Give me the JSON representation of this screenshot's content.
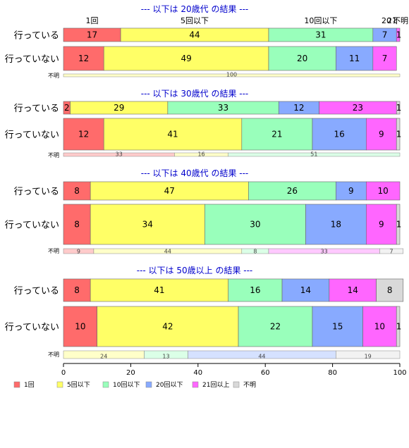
{
  "chart_data": {
    "type": "bar",
    "orientation": "horizontal",
    "stacked": true,
    "percent": true,
    "xlim": [
      0,
      100
    ],
    "xticks": [
      0,
      20,
      40,
      60,
      80,
      100
    ],
    "categories": [
      "1回",
      "5回以下",
      "10回以下",
      "20回以下",
      "21回以上",
      "不明"
    ],
    "colors": [
      "#ff6b6b",
      "#ffff66",
      "#99ffbb",
      "#88aaff",
      "#ff66ff",
      "#d9d9d9"
    ],
    "legend_position": "bottom",
    "top_labels": [
      "1回",
      "5回以下",
      "10回以下",
      "20",
      "21",
      "不明"
    ],
    "groups": [
      {
        "title": "--- 以下は 20歳代 の結果 ---",
        "unknown_label": "不明",
        "rows": [
          {
            "label": "行っている",
            "values": [
              17,
              44,
              31,
              7,
              1,
              0
            ]
          },
          {
            "label": "行っていない",
            "values": [
              12,
              49,
              20,
              11,
              7,
              0
            ]
          }
        ],
        "unknown_values": [
          0,
          100,
          0,
          0,
          0,
          0
        ]
      },
      {
        "title": "--- 以下は 30歳代 の結果 ---",
        "unknown_label": "不明",
        "rows": [
          {
            "label": "行っている",
            "values": [
              2,
              29,
              33,
              12,
              23,
              1
            ]
          },
          {
            "label": "行っていない",
            "values": [
              12,
              41,
              21,
              16,
              9,
              1
            ]
          }
        ],
        "unknown_values": [
          33,
          16,
          51,
          0,
          0,
          0
        ]
      },
      {
        "title": "--- 以下は 40歳代 の結果 ---",
        "unknown_label": "不明",
        "rows": [
          {
            "label": "行っている",
            "values": [
              8,
              47,
              26,
              9,
              10,
              0
            ]
          },
          {
            "label": "行っていない",
            "values": [
              8,
              34,
              30,
              18,
              9,
              1
            ]
          }
        ],
        "unknown_values": [
          9,
          44,
          8,
          0,
          33,
          7
        ]
      },
      {
        "title": "--- 以下は 50歳以上 の結果 ---",
        "unknown_label": "不明",
        "rows": [
          {
            "label": "行っている",
            "values": [
              8,
              41,
              16,
              14,
              14,
              8
            ]
          },
          {
            "label": "行っていない",
            "values": [
              10,
              42,
              22,
              15,
              10,
              1
            ]
          }
        ],
        "unknown_values": [
          0,
          24,
          13,
          44,
          0,
          19
        ]
      }
    ]
  }
}
